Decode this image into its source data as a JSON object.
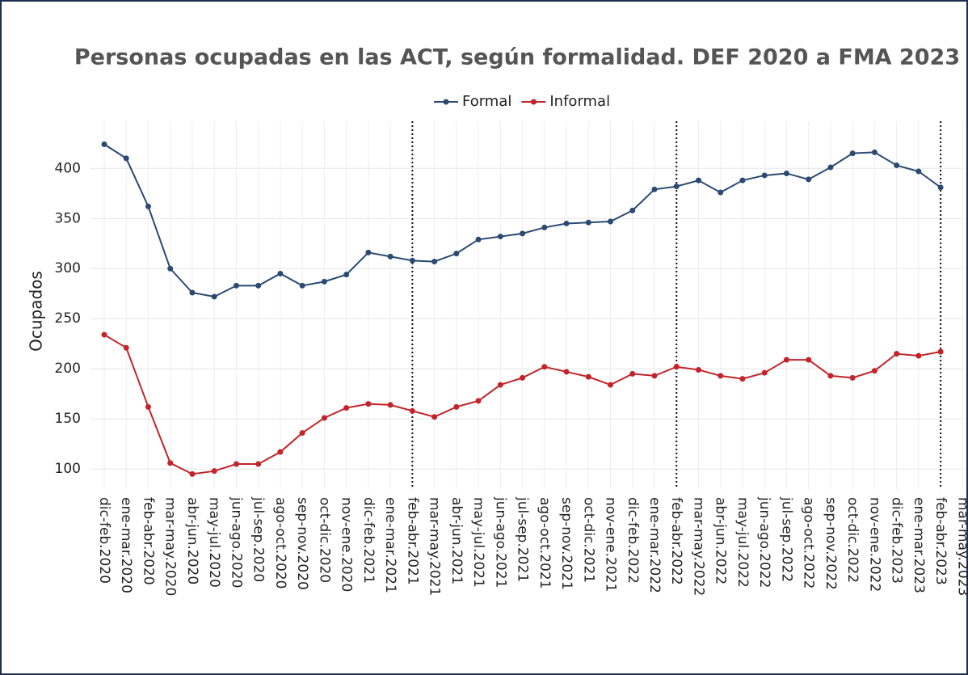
{
  "chart_data": {
    "type": "line",
    "title": "Personas ocupadas en las ACT, según formalidad. DEF 2020 a FMA 2023",
    "y_label": "Ocupados",
    "categories": [
      "dic-feb.2020",
      "ene-mar.2020",
      "feb-abr.2020",
      "mar-may.2020",
      "abr-jun.2020",
      "may-jul.2020",
      "jun-ago.2020",
      "jul-sep.2020",
      "ago-oct.2020",
      "sep-nov.2020",
      "oct-dic.2020",
      "nov-ene.2020",
      "dic-feb.2021",
      "ene-mar.2021",
      "feb-abr.2021",
      "mar-may.2021",
      "abr-jun.2021",
      "may-jul.2021",
      "jun-ago.2021",
      "jul-sep.2021",
      "ago-oct.2021",
      "sep-nov.2021",
      "oct-dic.2021",
      "nov-ene.2021",
      "dic-feb.2022",
      "ene-mar.2022",
      "feb-abr.2022",
      "mar-may.2022",
      "abr-jun.2022",
      "may-jul.2022",
      "jun-ago.2022",
      "jul-sep.2022",
      "ago-oct.2022",
      "sep-nov.2022",
      "oct-dic.2022",
      "nov-ene.2022",
      "dic-feb.2023",
      "ene-mar.2023",
      "feb-abr.2023",
      "mar-may.2023"
    ],
    "series": [
      {
        "name": "Formal",
        "color": "#2b4a72",
        "values": [
          424,
          410,
          362,
          300,
          276,
          272,
          283,
          283,
          295,
          283,
          287,
          294,
          316,
          312,
          308,
          307,
          315,
          329,
          332,
          335,
          341,
          345,
          346,
          347,
          358,
          379,
          382,
          388,
          376,
          388,
          393,
          395,
          389,
          401,
          415,
          416,
          403,
          397,
          381,
          null
        ]
      },
      {
        "name": "Informal",
        "color": "#c3242a",
        "values": [
          234,
          221,
          162,
          106,
          95,
          98,
          105,
          105,
          117,
          136,
          151,
          161,
          165,
          164,
          158,
          152,
          162,
          168,
          184,
          191,
          202,
          197,
          192,
          184,
          195,
          193,
          202,
          199,
          193,
          190,
          196,
          209,
          209,
          193,
          191,
          198,
          215,
          213,
          217,
          null
        ]
      }
    ],
    "vlines": [
      "feb-abr.2021",
      "feb-abr.2022",
      "feb-abr.2023"
    ],
    "ylim": [
      80,
      447
    ],
    "yticks": [
      100,
      150,
      200,
      250,
      300,
      350,
      400
    ],
    "grid": true
  }
}
